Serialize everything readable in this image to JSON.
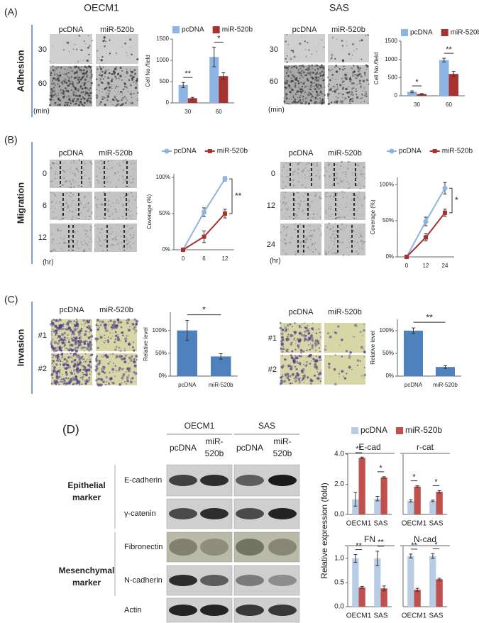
{
  "panels": {
    "A": {
      "label": "(A)",
      "heading": "Adhesion",
      "columns": [
        "pcDNA",
        "miR-520b"
      ],
      "groups": [
        {
          "title": "OECM1",
          "rows": [
            "30",
            "60"
          ],
          "unit": "(min)"
        },
        {
          "title": "SAS",
          "rows": [
            "30",
            "60"
          ],
          "unit": "(min)"
        }
      ]
    },
    "B": {
      "label": "(B)",
      "heading": "Migration",
      "columns": [
        "pcDNA",
        "miR-520b"
      ],
      "groups": [
        {
          "rows": [
            "0",
            "6",
            "12"
          ],
          "unit": "(hr)"
        },
        {
          "rows": [
            "0",
            "12",
            "24"
          ],
          "unit": "(hr)"
        }
      ]
    },
    "C": {
      "label": "(C)",
      "heading": "Invasion",
      "columns": [
        "pcDNA",
        "miR-520b"
      ],
      "groups": [
        {
          "rows": [
            "#1",
            "#2"
          ]
        },
        {
          "rows": [
            "#1",
            "#2"
          ]
        }
      ]
    },
    "D": {
      "label": "(D)",
      "lines": [
        "OECM1",
        "SAS"
      ],
      "lanes": [
        [
          "pcDNA"
        ],
        [
          "miR-",
          "520b"
        ]
      ],
      "proteins": [
        "E-cadherin",
        "γ-catenin",
        "Fibronectin",
        "N-cadherin",
        "Actin"
      ],
      "markers": [
        [
          "Epithelial",
          "marker"
        ],
        [
          "Mesenchymal",
          "marker"
        ]
      ],
      "ylabel": "Relative expression (fold)"
    }
  },
  "chart_data": [
    {
      "type": "bar",
      "ylabel": "Cell No./field",
      "categories": [
        "30",
        "60"
      ],
      "series": [
        {
          "name": "pcDNA",
          "color": "#8db4e2",
          "values": [
            420,
            1080
          ],
          "errors": [
            60,
            230
          ]
        },
        {
          "name": "miR-520b",
          "color": "#a83230",
          "values": [
            110,
            630
          ],
          "errors": [
            20,
            80
          ]
        }
      ],
      "ylim": [
        0,
        1500
      ],
      "yticks": [
        0,
        500,
        1000,
        1500
      ],
      "annotations": [
        "**",
        "*"
      ]
    },
    {
      "type": "bar",
      "ylabel": "Cell No./field",
      "categories": [
        "30",
        "60"
      ],
      "series": [
        {
          "name": "pcDNA",
          "color": "#8db4e2",
          "values": [
            110,
            980
          ],
          "errors": [
            25,
            50
          ]
        },
        {
          "name": "miR-520b",
          "color": "#a83230",
          "values": [
            50,
            600
          ],
          "errors": [
            10,
            70
          ]
        }
      ],
      "ylim": [
        0,
        1500
      ],
      "yticks": [
        0,
        500,
        1000,
        1500
      ],
      "annotations": [
        "*",
        "**"
      ]
    },
    {
      "type": "line",
      "ylabel": "Coverage (%)",
      "categories": [
        "0",
        "6",
        "12"
      ],
      "series": [
        {
          "name": "pcDNA",
          "color": "#8db4e2",
          "values": [
            0,
            52,
            98
          ],
          "errors": [
            0,
            6,
            3
          ]
        },
        {
          "name": "miR-520b",
          "color": "#a83230",
          "values": [
            0,
            18,
            50
          ],
          "errors": [
            0,
            8,
            6
          ]
        }
      ],
      "ylim": [
        0,
        105
      ],
      "yticks": [
        {
          "value": 0,
          "label": "0%"
        },
        {
          "value": 50,
          "label": "50%"
        },
        {
          "value": 100,
          "label": "100%"
        }
      ],
      "annotation": "**"
    },
    {
      "type": "line",
      "ylabel": "Coverage (%)",
      "categories": [
        "0",
        "12",
        "24"
      ],
      "series": [
        {
          "name": "pcDNA",
          "color": "#8db4e2",
          "values": [
            0,
            49,
            95
          ],
          "errors": [
            0,
            6,
            8
          ]
        },
        {
          "name": "miR-520b",
          "color": "#a83230",
          "values": [
            0,
            27,
            61
          ],
          "errors": [
            0,
            5,
            5
          ]
        }
      ],
      "ylim": [
        0,
        110
      ],
      "yticks": [
        {
          "value": 0,
          "label": "0%"
        },
        {
          "value": 50,
          "label": "50%"
        },
        {
          "value": 100,
          "label": "100%"
        }
      ],
      "annotation": "*"
    },
    {
      "type": "bar",
      "ylabel": "Relative level",
      "categories": [
        "pcDNA",
        "miR-520b"
      ],
      "values": [
        100,
        43
      ],
      "errors": [
        22,
        6
      ],
      "color": "#4f81bd",
      "ylim": [
        0,
        140
      ],
      "yticks": [
        {
          "value": 0,
          "label": "0%"
        },
        {
          "value": 50,
          "label": "50%"
        },
        {
          "value": 100,
          "label": "100%"
        }
      ],
      "annotation": "*"
    },
    {
      "type": "bar",
      "ylabel": "Relative level",
      "categories": [
        "pcDNA",
        "miR-520b"
      ],
      "values": [
        100,
        20
      ],
      "errors": [
        6,
        3
      ],
      "color": "#4f81bd",
      "ylim": [
        0,
        125
      ],
      "yticks": [
        {
          "value": 0,
          "label": "0%"
        },
        {
          "value": 50,
          "label": "50%"
        },
        {
          "value": 100,
          "label": "100%"
        }
      ],
      "annotation": "**"
    },
    {
      "type": "bar",
      "title": "E-cad",
      "categories": [
        "OECM1",
        "SAS"
      ],
      "series": [
        {
          "name": "pcDNA",
          "color": "#b8cce4",
          "values": [
            1.0,
            1.05
          ],
          "errors": [
            0.45,
            0.15
          ]
        },
        {
          "name": "miR-520b",
          "color": "#c0504d",
          "values": [
            3.75,
            2.45
          ],
          "errors": [
            0.05,
            0.05
          ]
        }
      ],
      "ylim": [
        0,
        4
      ],
      "yticks": [
        {
          "value": 0,
          "label": "0.0"
        },
        {
          "value": 2,
          "label": "2.0"
        },
        {
          "value": 4,
          "label": "4.0"
        }
      ],
      "annotations": [
        "**",
        "*"
      ]
    },
    {
      "type": "bar",
      "title": "r-cat",
      "categories": [
        "OECM1",
        "SAS"
      ],
      "series": [
        {
          "color": "#b8cce4",
          "values": [
            0.9,
            0.9
          ],
          "errors": [
            0.08,
            0.05
          ]
        },
        {
          "color": "#c0504d",
          "values": [
            1.85,
            1.5
          ],
          "errors": [
            0.05,
            0.08
          ]
        }
      ],
      "ylim": [
        0,
        4
      ],
      "annotations": [
        "*",
        "*"
      ]
    },
    {
      "type": "bar",
      "title": "FN",
      "categories": [
        "OECM1",
        "SAS"
      ],
      "series": [
        {
          "color": "#b8cce4",
          "values": [
            1.0,
            1.0
          ],
          "errors": [
            0.08,
            0.15
          ]
        },
        {
          "color": "#c0504d",
          "values": [
            0.4,
            0.38
          ],
          "errors": [
            0.02,
            0.05
          ]
        }
      ],
      "ylim": [
        0,
        1.25
      ],
      "yticks": [
        {
          "value": 0,
          "label": "0.0"
        },
        {
          "value": 0.5,
          "label": "0.5"
        },
        {
          "value": 1,
          "label": "1.0"
        }
      ],
      "annotations": [
        "**",
        "**"
      ]
    },
    {
      "type": "bar",
      "title": "N-cad",
      "categories": [
        "OECM1",
        "SAS"
      ],
      "series": [
        {
          "color": "#b8cce4",
          "values": [
            1.05,
            1.05
          ],
          "errors": [
            0.04,
            0.05
          ]
        },
        {
          "color": "#c0504d",
          "values": [
            0.35,
            0.57
          ],
          "errors": [
            0.03,
            0.02
          ]
        }
      ],
      "ylim": [
        0,
        1.25
      ],
      "annotations": [
        "**",
        "*"
      ]
    }
  ]
}
